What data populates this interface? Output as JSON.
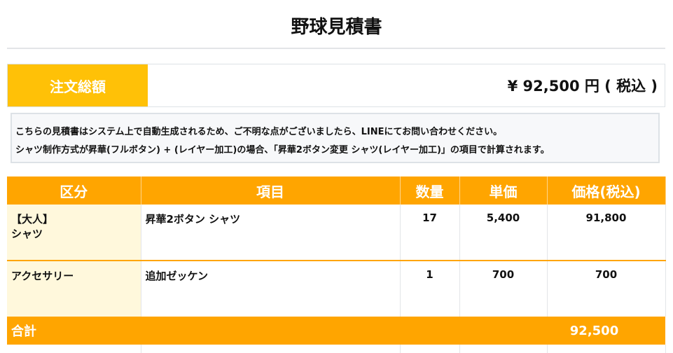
{
  "title": "野球見積書",
  "total": {
    "label": "注文総額",
    "value": "¥ 92,500 円 ( 税込 )"
  },
  "notice": [
    "こちらの見積書はシステム上で自動生成されるため、ご不明な点がございましたら、LINEにてお問い合わせください。",
    "シャツ制作方式が昇華(フルボタン) + (レイヤー加工)の場合、「昇華2ボタン変更 シャツ(レイヤー加工)」の項目で計算されます。"
  ],
  "table": {
    "headers": [
      "区分",
      "項目",
      "数量",
      "単価",
      "価格(税込)"
    ],
    "rows": [
      {
        "category": "【大人】\nシャツ",
        "item": "昇華2ボタン シャツ",
        "qty": "17",
        "unit": "5,400",
        "price": "91,800"
      },
      {
        "category": "アクセサリー",
        "item": "追加ゼッケン",
        "qty": "1",
        "unit": "700",
        "price": "700"
      }
    ],
    "sum_label": "合計",
    "sum_value": "92,500"
  },
  "colors": {
    "accent": "#FFA500",
    "label": "#FFC107",
    "category_bg": "#FFF8DC"
  }
}
